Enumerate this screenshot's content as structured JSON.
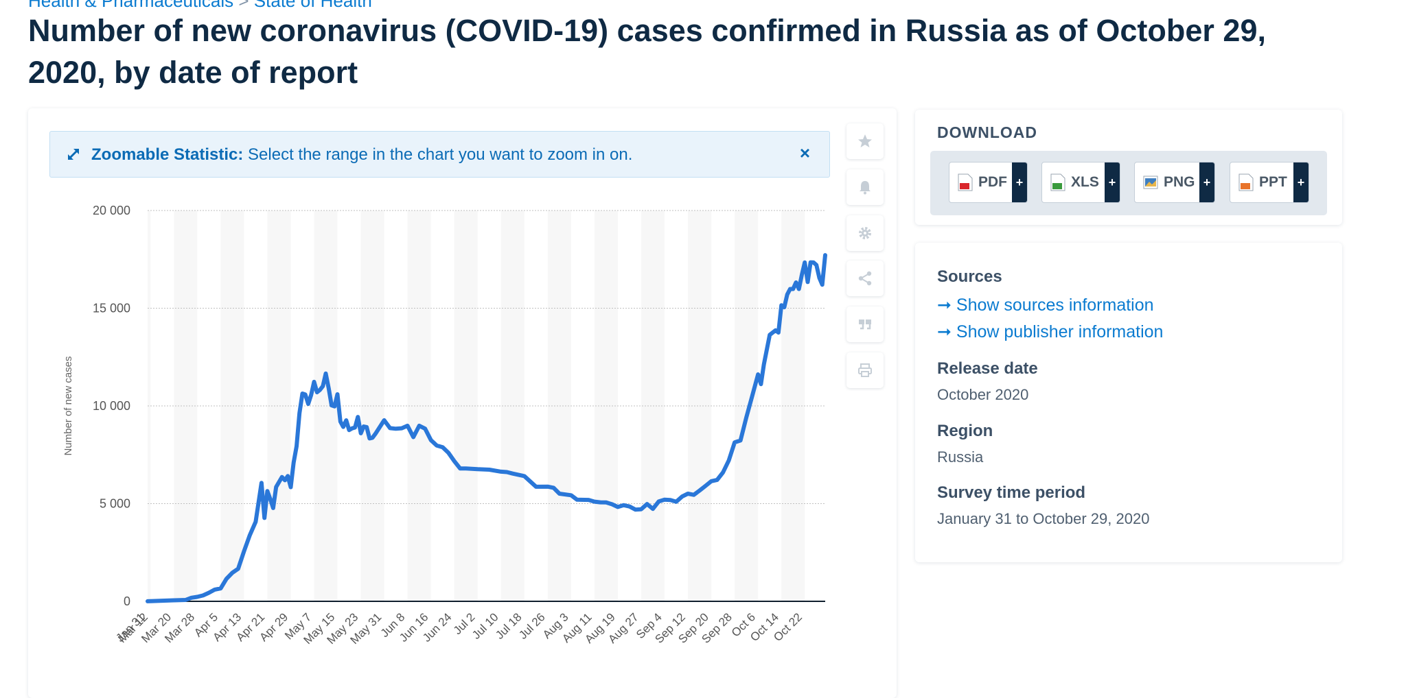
{
  "breadcrumb": {
    "items": [
      "Health & Pharmaceuticals",
      "State of Health"
    ],
    "separator": ">"
  },
  "page_title": "Number of new coronavirus (COVID-19) cases confirmed in Russia as of October 29, 2020, by date of report",
  "zoom_banner": {
    "label": "Zoomable Statistic:",
    "text": "Select the range in the chart you want to zoom in on.",
    "close": "×"
  },
  "toolbar": {
    "items": [
      "star-icon",
      "bell-icon",
      "gear-icon",
      "share-icon",
      "quote-icon",
      "print-icon"
    ]
  },
  "download": {
    "title": "DOWNLOAD",
    "buttons": [
      {
        "label": "PDF",
        "plus": "+",
        "color": "#d9262c"
      },
      {
        "label": "XLS",
        "plus": "+",
        "color": "#3a9a3d"
      },
      {
        "label": "PNG",
        "plus": "+",
        "color": "#3f7fc0"
      },
      {
        "label": "PPT",
        "plus": "+",
        "color": "#e8732a"
      }
    ]
  },
  "info": {
    "sources_label": "Sources",
    "sources_link": "Show sources information",
    "publisher_link": "Show publisher information",
    "release_label": "Release date",
    "release_value": "October 2020",
    "region_label": "Region",
    "region_value": "Russia",
    "period_label": "Survey time period",
    "period_value": "January 31 to October 29, 2020"
  },
  "colors": {
    "accent": "#0b7bd0",
    "line": "#2a77d8",
    "title": "#0f2a44"
  },
  "chart_data": {
    "type": "line",
    "title": "",
    "xlabel": "",
    "ylabel": "Number of new cases",
    "ylim": [
      0,
      20000
    ],
    "y_ticks": [
      0,
      5000,
      10000,
      15000,
      20000
    ],
    "y_tick_labels": [
      "0",
      "5 000",
      "10 000",
      "15 000",
      "20 000"
    ],
    "x_tick_labels": [
      "Jan 31",
      "Mar 12",
      "Mar 20",
      "Mar 28",
      "Apr 5",
      "Apr 13",
      "Apr 21",
      "Apr 29",
      "May 7",
      "May 15",
      "May 23",
      "May 31",
      "Jun 8",
      "Jun 16",
      "Jun 24",
      "Jul 2",
      "Jul 10",
      "Jul 18",
      "Jul 26",
      "Aug 3",
      "Aug 11",
      "Aug 19",
      "Aug 27",
      "Sep 4",
      "Sep 12",
      "Sep 20",
      "Sep 28",
      "Oct 6",
      "Oct 14",
      "Oct 22"
    ],
    "grid": true,
    "series": [
      {
        "name": "",
        "points": [
          [
            "Jan 31",
            2
          ],
          [
            "Mar 12",
            6
          ],
          [
            "Mar 16",
            30
          ],
          [
            "Mar 20",
            53
          ],
          [
            "Mar 24",
            71
          ],
          [
            "Mar 26",
            182
          ],
          [
            "Mar 28",
            228
          ],
          [
            "Mar 30",
            302
          ],
          [
            "Apr 1",
            440
          ],
          [
            "Apr 3",
            601
          ],
          [
            "Apr 5",
            658
          ],
          [
            "Apr 7",
            1154
          ],
          [
            "Apr 9",
            1459
          ],
          [
            "Apr 11",
            1667
          ],
          [
            "Apr 13",
            2558
          ],
          [
            "Apr 15",
            3388
          ],
          [
            "Apr 17",
            4070
          ],
          [
            "Apr 19",
            6060
          ],
          [
            "Apr 20",
            4268
          ],
          [
            "Apr 21",
            5642
          ],
          [
            "Apr 22",
            5236
          ],
          [
            "Apr 23",
            4774
          ],
          [
            "Apr 24",
            5849
          ],
          [
            "Apr 26",
            6361
          ],
          [
            "Apr 27",
            6198
          ],
          [
            "Apr 28",
            6411
          ],
          [
            "Apr 29",
            5841
          ],
          [
            "Apr 30",
            7099
          ],
          [
            "May 1",
            7933
          ],
          [
            "May 2",
            9623
          ],
          [
            "May 3",
            10633
          ],
          [
            "May 4",
            10581
          ],
          [
            "May 5",
            10102
          ],
          [
            "May 6",
            10559
          ],
          [
            "May 7",
            11231
          ],
          [
            "May 8",
            10699
          ],
          [
            "May 9",
            10817
          ],
          [
            "May 10",
            11012
          ],
          [
            "May 11",
            11656
          ],
          [
            "May 12",
            10899
          ],
          [
            "May 13",
            10028
          ],
          [
            "May 14",
            9974
          ],
          [
            "May 15",
            10598
          ],
          [
            "May 16",
            9200
          ],
          [
            "May 17",
            8926
          ],
          [
            "May 18",
            9263
          ],
          [
            "May 19",
            8764
          ],
          [
            "May 20",
            8849
          ],
          [
            "May 21",
            8894
          ],
          [
            "May 22",
            9434
          ],
          [
            "May 23",
            8599
          ],
          [
            "May 24",
            8946
          ],
          [
            "May 25",
            8915
          ],
          [
            "May 26",
            8338
          ],
          [
            "May 27",
            8371
          ],
          [
            "May 28",
            8572
          ],
          [
            "May 31",
            9268
          ],
          [
            "Jun 2",
            8863
          ],
          [
            "Jun 4",
            8831
          ],
          [
            "Jun 6",
            8855
          ],
          [
            "Jun 8",
            8985
          ],
          [
            "Jun 10",
            8404
          ],
          [
            "Jun 12",
            8987
          ],
          [
            "Jun 14",
            8835
          ],
          [
            "Jun 16",
            8248
          ],
          [
            "Jun 18",
            7972
          ],
          [
            "Jun 20",
            7889
          ],
          [
            "Jun 22",
            7600
          ],
          [
            "Jun 24",
            7176
          ],
          [
            "Jun 26",
            6800
          ],
          [
            "Jun 28",
            6800
          ],
          [
            "Jul 2",
            6760
          ],
          [
            "Jul 6",
            6736
          ],
          [
            "Jul 10",
            6635
          ],
          [
            "Jul 12",
            6615
          ],
          [
            "Jul 14",
            6537
          ],
          [
            "Jul 18",
            6406
          ],
          [
            "Jul 22",
            5862
          ],
          [
            "Jul 26",
            5871
          ],
          [
            "Jul 28",
            5811
          ],
          [
            "Jul 30",
            5509
          ],
          [
            "Aug 3",
            5427
          ],
          [
            "Aug 5",
            5204
          ],
          [
            "Aug 9",
            5189
          ],
          [
            "Aug 11",
            5102
          ],
          [
            "Aug 13",
            5065
          ],
          [
            "Aug 15",
            5061
          ],
          [
            "Aug 17",
            4969
          ],
          [
            "Aug 19",
            4828
          ],
          [
            "Aug 21",
            4921
          ],
          [
            "Aug 23",
            4852
          ],
          [
            "Aug 25",
            4696
          ],
          [
            "Aug 27",
            4711
          ],
          [
            "Aug 29",
            4980
          ],
          [
            "Aug 31",
            4729
          ],
          [
            "Sep 2",
            5110
          ],
          [
            "Sep 4",
            5205
          ],
          [
            "Sep 6",
            5185
          ],
          [
            "Sep 8",
            5099
          ],
          [
            "Sep 10",
            5363
          ],
          [
            "Sep 12",
            5509
          ],
          [
            "Sep 14",
            5449
          ],
          [
            "Sep 16",
            5670
          ],
          [
            "Sep 18",
            5905
          ],
          [
            "Sep 20",
            6148
          ],
          [
            "Sep 22",
            6215
          ],
          [
            "Sep 24",
            6595
          ],
          [
            "Sep 26",
            7212
          ],
          [
            "Sep 28",
            8135
          ],
          [
            "Sep 30",
            8232
          ],
          [
            "Oct 2",
            9412
          ],
          [
            "Oct 4",
            10499
          ],
          [
            "Oct 6",
            11615
          ],
          [
            "Oct 7",
            11115
          ],
          [
            "Oct 8",
            12126
          ],
          [
            "Oct 10",
            13634
          ],
          [
            "Oct 12",
            13868
          ],
          [
            "Oct 13",
            13754
          ],
          [
            "Oct 14",
            15150
          ],
          [
            "Oct 15",
            15048
          ],
          [
            "Oct 16",
            15700
          ],
          [
            "Oct 17",
            15982
          ],
          [
            "Oct 18",
            15982
          ],
          [
            "Oct 19",
            16319
          ],
          [
            "Oct 20",
            15982
          ],
          [
            "Oct 21",
            16711
          ],
          [
            "Oct 22",
            17340
          ],
          [
            "Oct 23",
            16339
          ],
          [
            "Oct 24",
            17347
          ],
          [
            "Oct 25",
            17342
          ],
          [
            "Oct 26",
            17211
          ],
          [
            "Oct 27",
            16550
          ],
          [
            "Oct 28",
            16202
          ],
          [
            "Oct 29",
            17717
          ]
        ]
      }
    ]
  }
}
